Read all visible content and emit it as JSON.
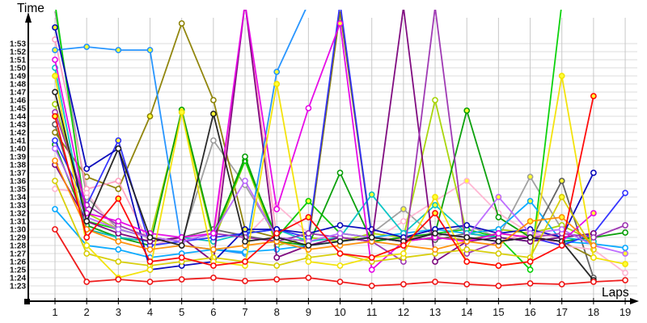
{
  "labels": {
    "y_axis_title": "Time",
    "x_axis_title": "Laps"
  },
  "y_ticks": [
    "1:53",
    "1:52",
    "1:51",
    "1:50",
    "1:49",
    "1:48",
    "1:47",
    "1:46",
    "1:45",
    "1:44",
    "1:43",
    "1:42",
    "1:41",
    "1:40",
    "1:39",
    "1:38",
    "1:37",
    "1:36",
    "1:35",
    "1:34",
    "1:33",
    "1:32",
    "1:31",
    "1:30",
    "1:29",
    "1:28",
    "1:27",
    "1:26",
    "1:25",
    "1:24",
    "1:23"
  ],
  "x_ticks": [
    "1",
    "2",
    "3",
    "4",
    "5",
    "6",
    "7",
    "8",
    "9",
    "10",
    "11",
    "12",
    "13",
    "14",
    "15",
    "16",
    "17",
    "18",
    "19"
  ],
  "chart_data": {
    "type": "line",
    "title": "",
    "xlabel": "Laps",
    "ylabel": "Time",
    "x": [
      1,
      2,
      3,
      4,
      5,
      6,
      7,
      8,
      9,
      10,
      11,
      12,
      13,
      14,
      15,
      16,
      17,
      18,
      19
    ],
    "y_axis": {
      "unit": "m:ss",
      "tick_min": "1:23",
      "tick_max": "1:53",
      "step_seconds": 1,
      "values_are": "seconds (83 = 1:23, 113 = 1:53); >116.5 = spike clipped above chart top"
    },
    "grid": true,
    "legend": "none",
    "marker": "open-circle",
    "series": [
      {
        "name": "gray",
        "color": "#9c9c9c",
        "values": [
          117,
          94,
          90,
          89,
          88.5,
          101,
          95.5,
          89,
          88.5,
          117,
          89.5,
          92.5,
          89,
          90.5,
          89,
          96.5,
          90,
          88,
          null
        ],
        "yf": [
          12,
          16
        ]
      },
      {
        "name": "dark-gray",
        "color": "#5c5c5c",
        "values": [
          103,
          90,
          89,
          88.5,
          89,
          90,
          89.2,
          88.5,
          89.5,
          89,
          88.5,
          89,
          88.7,
          89.5,
          89,
          88.5,
          96,
          84,
          null
        ],
        "yf": [
          17
        ]
      },
      {
        "name": "olive",
        "color": "#8b8000",
        "values": [
          102,
          96.5,
          95,
          104,
          115.5,
          106,
          90,
          89,
          88.5,
          117,
          89,
          88.5,
          89,
          88.7,
          89.5,
          89,
          88.5,
          86.5,
          null
        ],
        "yf": [
          4
        ]
      },
      {
        "name": "pink-a",
        "color": "#ff9ec0",
        "values": [
          113.5,
          95,
          96,
          88,
          89,
          88.5,
          118,
          89,
          93.5,
          89.5,
          89,
          88.7,
          89.5,
          89,
          88.5,
          89.5,
          89,
          88.5,
          null
        ],
        "yf": []
      },
      {
        "name": "pink-b",
        "color": "#ffb3d1",
        "values": [
          95,
          94.5,
          89.5,
          88.5,
          89,
          89.5,
          89,
          93,
          89.5,
          89,
          88.5,
          91,
          93.5,
          96,
          92,
          89.5,
          88,
          87.5,
          84.6
        ],
        "yf": [
          14
        ]
      },
      {
        "name": "chartreuse",
        "color": "#a4d400",
        "values": [
          105.5,
          92,
          90,
          89,
          104.5,
          88.5,
          98.5,
          88,
          89,
          88.5,
          89.5,
          89,
          106,
          89.5,
          90,
          89.5,
          90.5,
          88.5,
          null
        ],
        "yf": [
          5
        ]
      },
      {
        "name": "green-b",
        "color": "#00d000",
        "values": [
          118,
          91,
          90,
          89,
          88.5,
          89.5,
          98.5,
          89,
          93.5,
          89.5,
          89,
          88.5,
          89.5,
          90,
          89,
          85,
          118,
          null,
          null
        ],
        "yf": [
          9
        ]
      },
      {
        "name": "green-a",
        "color": "#009c00",
        "values": [
          100.5,
          90.5,
          89,
          88,
          104.8,
          89,
          99,
          88.5,
          88,
          97,
          88.5,
          89,
          89.5,
          104.7,
          91.5,
          89,
          88.5,
          89,
          89.6
        ],
        "yf": [
          5,
          14
        ]
      },
      {
        "name": "skyblue-a",
        "color": "#1e90ff",
        "values": [
          112.2,
          112.6,
          112.2,
          112.2,
          88,
          87.5,
          87,
          109.5,
          118,
          null,
          null,
          null,
          null,
          null,
          null,
          null,
          null,
          null,
          null
        ],
        "yf": [
          1,
          2,
          3,
          4,
          8
        ]
      },
      {
        "name": "skyblue-b",
        "color": "#00a6ff",
        "values": [
          92.5,
          88,
          87.5,
          86.5,
          87,
          87.5,
          87.2,
          87.5,
          88,
          88.5,
          89,
          89.5,
          90,
          89.5,
          90,
          93.5,
          88.5,
          88.2,
          87.7
        ],
        "yf": [
          16
        ]
      },
      {
        "name": "cyan",
        "color": "#00c3c3",
        "values": [
          110,
          90,
          89,
          88.5,
          89,
          88.5,
          89.5,
          90,
          88.5,
          89,
          94.3,
          89.5,
          93,
          89.5,
          89,
          88.5,
          89,
          88.5,
          null
        ],
        "yf": [
          11,
          13
        ]
      },
      {
        "name": "blue-b",
        "color": "#2b2bff",
        "values": [
          101,
          93,
          101,
          88,
          88.5,
          89,
          89.5,
          90,
          89,
          118,
          89,
          88.5,
          89.5,
          89,
          88.5,
          89,
          88,
          89.5,
          94.5
        ],
        "yf": [
          3
        ]
      },
      {
        "name": "blue-a",
        "color": "#0000b8",
        "values": [
          115,
          97.5,
          100,
          85,
          85.5,
          86,
          90,
          90,
          89.5,
          90.5,
          90,
          89,
          90,
          90.5,
          89.5,
          90,
          89,
          97,
          null
        ],
        "yf": [
          1,
          7
        ]
      },
      {
        "name": "purple-a",
        "color": "#7a007a",
        "values": [
          98,
          91,
          89.5,
          88.5,
          89,
          86,
          118,
          86.5,
          88,
          89,
          88.5,
          117.5,
          86,
          88.5,
          89,
          88.5,
          89,
          89.5,
          null
        ],
        "yf": []
      },
      {
        "name": "purple-b",
        "color": "#9b30b0",
        "values": [
          104.5,
          93,
          90.5,
          89,
          88.5,
          89.5,
          89,
          88.5,
          89.5,
          89,
          88.5,
          86,
          117.5,
          87,
          88.5,
          89,
          89.5,
          89,
          90.5
        ],
        "yf": []
      },
      {
        "name": "violet",
        "color": "#bb66ff",
        "values": [
          100,
          91.5,
          90,
          89,
          88.5,
          89.5,
          96,
          89,
          88.5,
          89.5,
          89,
          88.5,
          89.5,
          89,
          94,
          89.5,
          90,
          88,
          87
        ],
        "yf": [
          15,
          19
        ]
      },
      {
        "name": "magenta",
        "color": "#e600e6",
        "values": [
          111,
          92,
          91,
          89.5,
          89,
          89.5,
          118,
          92.5,
          105,
          115.5,
          85,
          88.5,
          89,
          88.5,
          89.5,
          89,
          88.5,
          92,
          null
        ],
        "yf": [
          10,
          18
        ]
      },
      {
        "name": "yellow-b",
        "color": "#d6cc00",
        "values": [
          96,
          87,
          86,
          85.5,
          86,
          86.5,
          86,
          85.5,
          86.5,
          87,
          86,
          86.5,
          87,
          87.5,
          87,
          86.5,
          94,
          87.5,
          null
        ],
        "yf": [
          17
        ]
      },
      {
        "name": "yellow-a",
        "color": "#f2e200",
        "values": [
          109,
          88,
          84,
          85,
          104.5,
          86,
          85.5,
          108,
          86,
          85.5,
          86.5,
          87,
          94,
          86,
          85.5,
          86,
          109,
          86.5,
          85.7
        ],
        "yf": [
          1,
          3,
          5,
          8,
          13,
          17,
          19
        ]
      },
      {
        "name": "orange",
        "color": "#ff8c00",
        "values": [
          98.5,
          90,
          88.5,
          87.5,
          88,
          87.5,
          88,
          88.5,
          87.5,
          88,
          88.5,
          88,
          87.5,
          88.5,
          88,
          91,
          91.5,
          88,
          null
        ],
        "yf": [
          16,
          17
        ]
      },
      {
        "name": "black",
        "color": "#1f1f1f",
        "values": [
          107,
          91,
          100,
          89,
          88,
          104.3,
          88.5,
          89,
          88,
          88.5,
          89,
          88.5,
          89.5,
          89,
          88.5,
          89,
          88.5,
          83.7,
          null
        ],
        "yf": [
          6
        ]
      },
      {
        "name": "red-a",
        "color": "#ff0000",
        "values": [
          104,
          89,
          93.8,
          86,
          86.5,
          85.5,
          86,
          89.5,
          91.5,
          87,
          86.5,
          88,
          92,
          86,
          85.5,
          86,
          88,
          106.5,
          null
        ],
        "yf": [
          1,
          3,
          9,
          13,
          18
        ]
      },
      {
        "name": "red-b",
        "color": "#ee1111",
        "values": [
          90,
          83.5,
          83.8,
          83.5,
          83.8,
          84,
          83.6,
          83.8,
          84,
          83.5,
          83,
          83.2,
          83.5,
          83.2,
          83,
          83.3,
          83.2,
          83.5,
          83.7
        ],
        "yf": []
      }
    ]
  },
  "style_colors": {
    "background": "#ffffff",
    "grid_h": "#dcdcdc",
    "grid_v": "#c9c9c9",
    "axis": "#000000",
    "tick_label": "#101010",
    "marker_fill_default": "#ffffff",
    "marker_fill_highlight": "#ffff33"
  }
}
